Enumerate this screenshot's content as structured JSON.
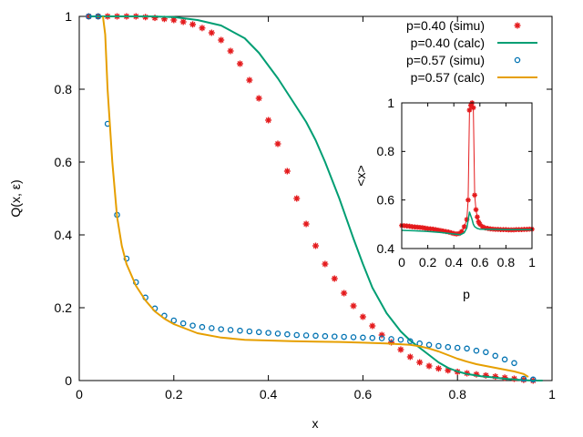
{
  "chart_data": [
    {
      "type": "scatter",
      "role": "main",
      "xlabel": "x",
      "ylabel": "Q(x, ε)",
      "xlim": [
        0,
        1
      ],
      "ylim": [
        0,
        1
      ],
      "xticks": [
        0,
        0.2,
        0.4,
        0.6,
        0.8,
        1
      ],
      "yticks": [
        0,
        0.2,
        0.4,
        0.6,
        0.8,
        1
      ],
      "xtick_labels": [
        "0",
        "0.2",
        "0.4",
        "0.6",
        "0.8",
        "1"
      ],
      "ytick_labels": [
        "0",
        "0.2",
        "0.4",
        "0.6",
        "0.8",
        "1"
      ],
      "legend_position": "top-right",
      "series": [
        {
          "name": "p=0.40 (simu)",
          "style": "points",
          "marker": "star",
          "color": "#e41a1c",
          "x": [
            0.02,
            0.04,
            0.06,
            0.08,
            0.1,
            0.12,
            0.14,
            0.16,
            0.18,
            0.2,
            0.22,
            0.24,
            0.26,
            0.28,
            0.3,
            0.32,
            0.34,
            0.36,
            0.38,
            0.4,
            0.42,
            0.44,
            0.46,
            0.48,
            0.5,
            0.52,
            0.54,
            0.56,
            0.58,
            0.6,
            0.62,
            0.64,
            0.66,
            0.68,
            0.7,
            0.72,
            0.74,
            0.76,
            0.78,
            0.8,
            0.82,
            0.84,
            0.86,
            0.88,
            0.9,
            0.92,
            0.94,
            0.96
          ],
          "y": [
            1.0,
            1.0,
            1.0,
            1.0,
            1.0,
            1.0,
            0.998,
            0.996,
            0.993,
            0.99,
            0.985,
            0.978,
            0.968,
            0.955,
            0.935,
            0.905,
            0.87,
            0.825,
            0.775,
            0.715,
            0.65,
            0.575,
            0.5,
            0.43,
            0.37,
            0.32,
            0.28,
            0.24,
            0.205,
            0.175,
            0.15,
            0.125,
            0.105,
            0.085,
            0.065,
            0.05,
            0.04,
            0.033,
            0.028,
            0.024,
            0.02,
            0.017,
            0.014,
            0.011,
            0.008,
            0.005,
            0.002,
            0.0
          ]
        },
        {
          "name": "p=0.40 (calc)",
          "style": "line",
          "color": "#009e73",
          "x": [
            0.02,
            0.05,
            0.1,
            0.15,
            0.2,
            0.25,
            0.3,
            0.35,
            0.38,
            0.42,
            0.45,
            0.48,
            0.5,
            0.52,
            0.55,
            0.58,
            0.6,
            0.62,
            0.65,
            0.68,
            0.7,
            0.72,
            0.74,
            0.76,
            0.78,
            0.8,
            0.82,
            0.85,
            0.88,
            0.9,
            0.92,
            0.94,
            0.96,
            0.98
          ],
          "y": [
            1.0,
            1.0,
            1.0,
            1.0,
            0.998,
            0.99,
            0.975,
            0.94,
            0.9,
            0.83,
            0.77,
            0.71,
            0.66,
            0.6,
            0.5,
            0.39,
            0.32,
            0.255,
            0.185,
            0.135,
            0.11,
            0.09,
            0.07,
            0.05,
            0.035,
            0.025,
            0.018,
            0.012,
            0.008,
            0.005,
            0.003,
            0.001,
            0.0,
            0.0
          ]
        },
        {
          "name": "p=0.57 (simu)",
          "style": "points",
          "marker": "circle",
          "color": "#0072b2",
          "x": [
            0.02,
            0.04,
            0.06,
            0.08,
            0.1,
            0.12,
            0.14,
            0.16,
            0.18,
            0.2,
            0.22,
            0.24,
            0.26,
            0.28,
            0.3,
            0.32,
            0.34,
            0.36,
            0.38,
            0.4,
            0.42,
            0.44,
            0.46,
            0.48,
            0.5,
            0.52,
            0.54,
            0.56,
            0.58,
            0.6,
            0.62,
            0.64,
            0.66,
            0.68,
            0.7,
            0.72,
            0.74,
            0.76,
            0.78,
            0.8,
            0.82,
            0.84,
            0.86,
            0.88,
            0.9,
            0.92,
            0.94,
            0.96
          ],
          "y": [
            1.0,
            1.0,
            0.705,
            0.455,
            0.335,
            0.27,
            0.228,
            0.198,
            0.178,
            0.165,
            0.157,
            0.151,
            0.147,
            0.144,
            0.141,
            0.139,
            0.137,
            0.135,
            0.133,
            0.131,
            0.129,
            0.127,
            0.125,
            0.124,
            0.123,
            0.122,
            0.121,
            0.12,
            0.119,
            0.118,
            0.117,
            0.116,
            0.114,
            0.112,
            0.108,
            0.102,
            0.098,
            0.095,
            0.092,
            0.09,
            0.088,
            0.082,
            0.078,
            0.068,
            0.058,
            0.048,
            0.005,
            0.003
          ]
        },
        {
          "name": "p=0.57 (calc)",
          "style": "line",
          "color": "#e69f00",
          "x": [
            0.05,
            0.055,
            0.06,
            0.07,
            0.08,
            0.09,
            0.1,
            0.12,
            0.14,
            0.16,
            0.18,
            0.2,
            0.25,
            0.3,
            0.35,
            0.4,
            0.45,
            0.5,
            0.55,
            0.6,
            0.65,
            0.7,
            0.72,
            0.74,
            0.76,
            0.78,
            0.8,
            0.82,
            0.84,
            0.86,
            0.88,
            0.9,
            0.92,
            0.94,
            0.95
          ],
          "y": [
            1.0,
            0.95,
            0.8,
            0.6,
            0.45,
            0.37,
            0.32,
            0.26,
            0.22,
            0.19,
            0.17,
            0.155,
            0.13,
            0.118,
            0.112,
            0.11,
            0.108,
            0.107,
            0.106,
            0.104,
            0.102,
            0.098,
            0.094,
            0.088,
            0.08,
            0.07,
            0.06,
            0.052,
            0.045,
            0.04,
            0.035,
            0.03,
            0.025,
            0.018,
            0.01
          ]
        }
      ]
    },
    {
      "type": "line",
      "role": "inset",
      "xlabel": "p",
      "ylabel": "<x>",
      "xlim": [
        0,
        1
      ],
      "ylim": [
        0.4,
        1
      ],
      "xticks": [
        0,
        0.2,
        0.4,
        0.6,
        0.8,
        1
      ],
      "yticks": [
        0.4,
        0.6,
        0.8,
        1
      ],
      "xtick_labels": [
        "0",
        "0.2",
        "0.4",
        "0.6",
        "0.8",
        "1"
      ],
      "ytick_labels": [
        "0.4",
        "0.6",
        "0.8",
        "1"
      ],
      "series": [
        {
          "name": "simu",
          "style": "points+line",
          "marker": "star",
          "color": "#e41a1c",
          "x": [
            0.0,
            0.02,
            0.04,
            0.06,
            0.08,
            0.1,
            0.12,
            0.14,
            0.16,
            0.18,
            0.2,
            0.22,
            0.24,
            0.26,
            0.28,
            0.3,
            0.32,
            0.34,
            0.36,
            0.38,
            0.4,
            0.42,
            0.44,
            0.46,
            0.48,
            0.5,
            0.51,
            0.52,
            0.53,
            0.54,
            0.55,
            0.56,
            0.57,
            0.58,
            0.59,
            0.6,
            0.62,
            0.64,
            0.66,
            0.68,
            0.7,
            0.72,
            0.74,
            0.76,
            0.78,
            0.8,
            0.82,
            0.84,
            0.86,
            0.88,
            0.9,
            0.92,
            0.94,
            0.96,
            0.98,
            1.0
          ],
          "y": [
            0.495,
            0.494,
            0.493,
            0.492,
            0.49,
            0.489,
            0.488,
            0.487,
            0.486,
            0.484,
            0.482,
            0.481,
            0.48,
            0.478,
            0.476,
            0.474,
            0.472,
            0.47,
            0.468,
            0.465,
            0.462,
            0.46,
            0.462,
            0.47,
            0.49,
            0.52,
            0.6,
            0.97,
            0.99,
            1.0,
            0.98,
            0.62,
            0.56,
            0.53,
            0.51,
            0.5,
            0.49,
            0.485,
            0.483,
            0.481,
            0.48,
            0.479,
            0.479,
            0.478,
            0.478,
            0.478,
            0.477,
            0.477,
            0.477,
            0.478,
            0.478,
            0.478,
            0.479,
            0.479,
            0.48,
            0.48
          ]
        },
        {
          "name": "calc",
          "style": "line",
          "color": "#009e73",
          "x": [
            0.0,
            0.1,
            0.2,
            0.3,
            0.4,
            0.45,
            0.48,
            0.5,
            0.52,
            0.54,
            0.55,
            0.56,
            0.58,
            0.6,
            0.65,
            0.7,
            0.8,
            0.9,
            1.0
          ],
          "y": [
            0.475,
            0.473,
            0.47,
            0.466,
            0.46,
            0.457,
            0.465,
            0.485,
            0.55,
            0.52,
            0.5,
            0.49,
            0.483,
            0.48,
            0.479,
            0.479,
            0.478,
            0.478,
            0.478
          ]
        }
      ]
    }
  ]
}
